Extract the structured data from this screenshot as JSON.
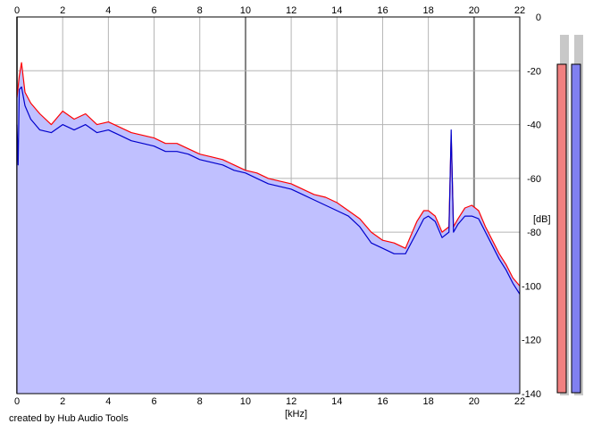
{
  "footer_text": "created by Hub Audio Tools",
  "colors": {
    "background": "#ffffff",
    "grid": "#b4b4b4",
    "grid_major": "#808080",
    "fill": "#c0c0ff",
    "left_channel": "#ff0000",
    "right_channel": "#0000cc",
    "meter_left": "#f08080",
    "meter_right": "#8080f0"
  },
  "chart_data": {
    "type": "line",
    "title": "",
    "xlabel": "[kHz]",
    "ylabel": "[dB]",
    "xlim": [
      0,
      22
    ],
    "ylim": [
      -140,
      0
    ],
    "x_ticks": [
      "0",
      "2",
      "4",
      "6",
      "8",
      "10",
      "12",
      "14",
      "16",
      "18",
      "20",
      "22"
    ],
    "y_ticks": [
      "0",
      "-20",
      "-40",
      "-60",
      "-80",
      "-100",
      "-120",
      "-140"
    ],
    "grid": true,
    "filled_under_curve": true,
    "series": [
      {
        "color_key": "left_channel",
        "x": [
          0,
          0.1,
          0.2,
          0.35,
          0.6,
          1,
          1.5,
          2,
          2.5,
          3,
          3.5,
          4,
          4.5,
          5,
          5.5,
          6,
          6.5,
          7,
          7.5,
          8,
          8.5,
          9,
          9.5,
          10,
          10.5,
          11,
          11.5,
          12,
          12.5,
          13,
          13.5,
          14,
          14.5,
          15,
          15.5,
          16,
          16.5,
          17,
          17.5,
          17.8,
          18,
          18.3,
          18.6,
          18.9,
          19.0,
          19.1,
          19.3,
          19.6,
          19.9,
          20.2,
          20.5,
          20.8,
          21.1,
          21.4,
          21.7,
          22
        ],
        "y": [
          -30,
          -22,
          -17,
          -28,
          -32,
          -36,
          -40,
          -35,
          -38,
          -36,
          -40,
          -39,
          -41,
          -43,
          -44,
          -45,
          -47,
          -47,
          -49,
          -51,
          -52,
          -53,
          -55,
          -57,
          -58,
          -60,
          -61,
          -62,
          -64,
          -66,
          -67,
          -69,
          -72,
          -75,
          -80,
          -83,
          -84,
          -86,
          -76,
          -72,
          -72,
          -74,
          -80,
          -78,
          -44,
          -78,
          -75,
          -71,
          -70,
          -72,
          -78,
          -83,
          -88,
          -92,
          -97,
          -100
        ]
      },
      {
        "color_key": "right_channel",
        "x": [
          0,
          0.05,
          0.1,
          0.2,
          0.35,
          0.6,
          1,
          1.5,
          2,
          2.5,
          3,
          3.5,
          4,
          4.5,
          5,
          5.5,
          6,
          6.5,
          7,
          7.5,
          8,
          8.5,
          9,
          9.5,
          10,
          10.5,
          11,
          11.5,
          12,
          12.5,
          13,
          13.5,
          14,
          14.5,
          15,
          15.5,
          16,
          16.5,
          17,
          17.5,
          17.8,
          18,
          18.3,
          18.6,
          18.9,
          19.0,
          19.1,
          19.3,
          19.6,
          19.9,
          20.2,
          20.5,
          20.8,
          21.1,
          21.4,
          21.7,
          22
        ],
        "y": [
          -40,
          -55,
          -27,
          -26,
          -33,
          -38,
          -42,
          -43,
          -40,
          -42,
          -40,
          -43,
          -42,
          -44,
          -46,
          -47,
          -48,
          -50,
          -50,
          -51,
          -53,
          -54,
          -55,
          -57,
          -58,
          -60,
          -62,
          -63,
          -64,
          -66,
          -68,
          -70,
          -72,
          -74,
          -78,
          -84,
          -86,
          -88,
          -88,
          -80,
          -75,
          -74,
          -76,
          -82,
          -80,
          -42,
          -80,
          -77,
          -74,
          -74,
          -75,
          -80,
          -85,
          -90,
          -94,
          -99,
          -103
        ]
      }
    ]
  },
  "meters": [
    {
      "name": "left",
      "color_key": "meter_left",
      "level_db": -6
    },
    {
      "name": "right",
      "color_key": "meter_right",
      "level_db": -6
    }
  ]
}
